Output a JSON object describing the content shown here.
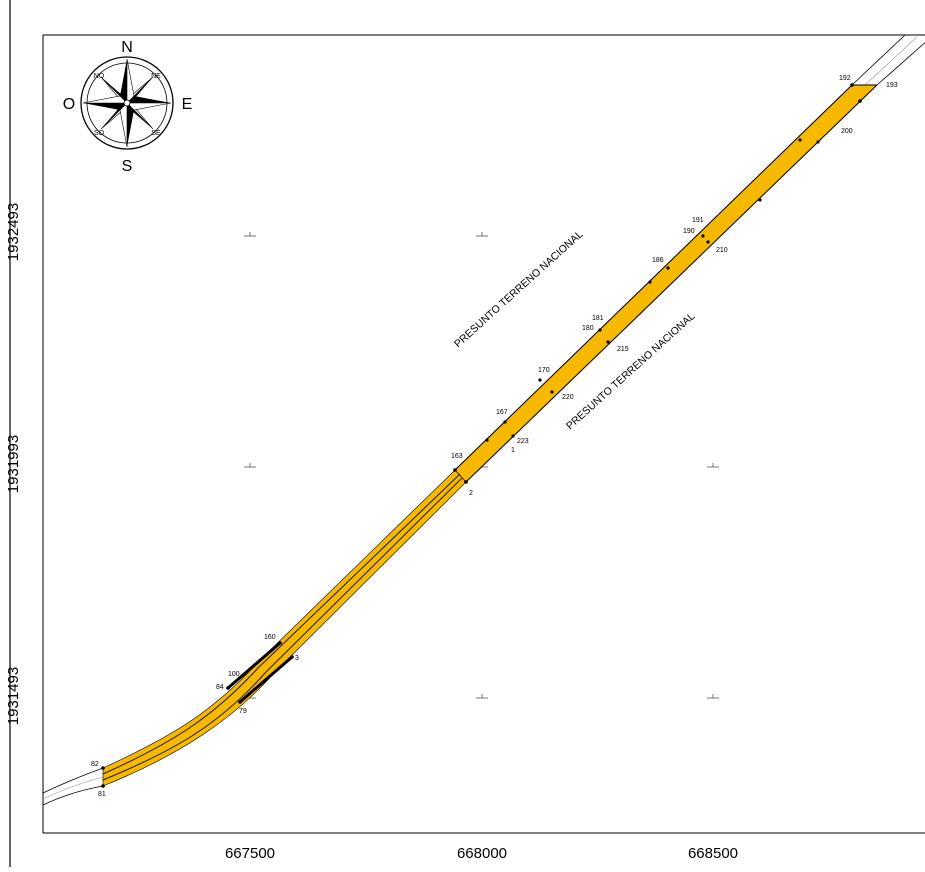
{
  "axes": {
    "x_ticks": [
      "667500",
      "668000",
      "668500"
    ],
    "y_ticks": [
      "1932493",
      "1931993",
      "1931493"
    ]
  },
  "compass": {
    "N": "N",
    "S": "S",
    "E": "E",
    "O": "O",
    "NO": "NO",
    "NE": "NE",
    "SO": "SO",
    "SE": "SE",
    "icon": "compass-rose-icon"
  },
  "regions": {
    "label_upper": "PRESUNTO TERRENO NACIONAL",
    "label_lower": "PRESUNTO TERRENO NACIONAL"
  },
  "vertex_labels": {
    "v192": "192",
    "v193": "193",
    "v200": "200",
    "v191": "191",
    "v190": "190",
    "v186": "186",
    "v210": "210",
    "v181": "181",
    "v180": "180",
    "v215": "215",
    "v170": "170",
    "v220": "220",
    "v167": "167",
    "v223": "223",
    "v1": "1",
    "v163": "163",
    "v2": "2",
    "v160": "160",
    "v3": "3",
    "v100": "100",
    "v84": "84",
    "v79": "79",
    "v82": "82",
    "v81": "81"
  },
  "colors": {
    "corridor_fill": "#F7B800",
    "line": "#000000",
    "grid_cross": "#555555"
  }
}
